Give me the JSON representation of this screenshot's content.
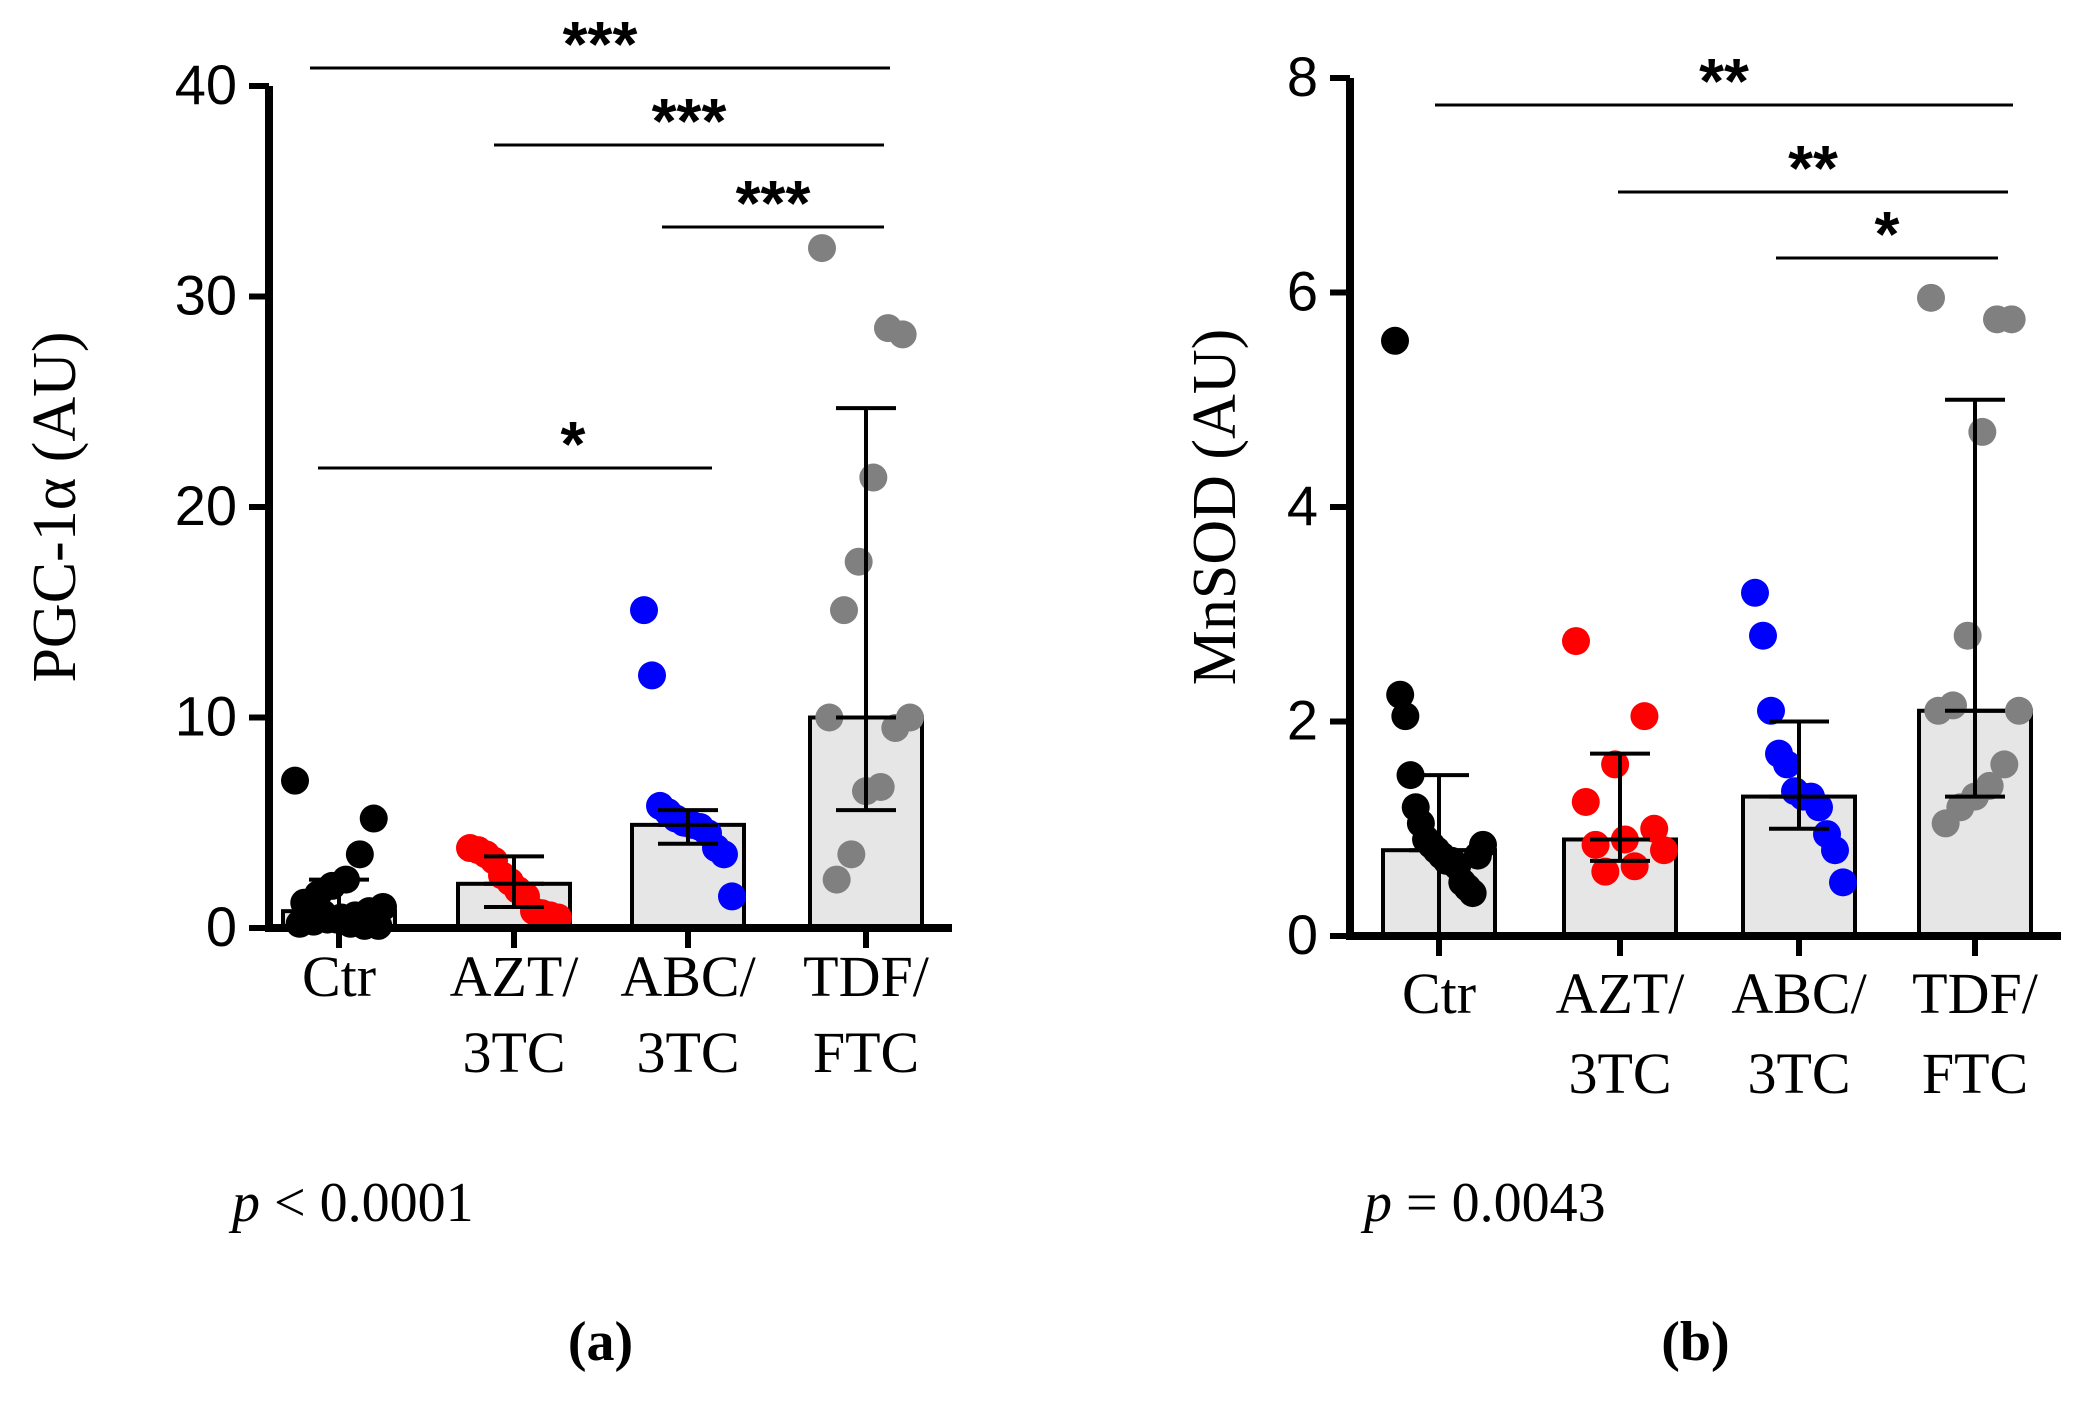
{
  "colors": {
    "ctr": "#000000",
    "azt": "#ff0000",
    "abc": "#0000ff",
    "tdf": "#808080",
    "bar_fill": "#e6e6e6",
    "axis": "#000000"
  },
  "chart_data": [
    {
      "panel": "(a)",
      "type": "bar",
      "ylabel": "PGC-1α (AU)",
      "ylim": [
        0,
        40
      ],
      "yticks": [
        "0",
        "10",
        "20",
        "30",
        "40"
      ],
      "categories": [
        {
          "line1": "Ctr",
          "line2": ""
        },
        {
          "line1": "AZT/",
          "line2": "3TC"
        },
        {
          "line1": "ABC/",
          "line2": "3TC"
        },
        {
          "line1": "TDF/",
          "line2": "FTC"
        }
      ],
      "means": [
        0.8,
        2.1,
        4.9,
        10.0
      ],
      "errors": [
        [
          0.0,
          2.3
        ],
        [
          1.0,
          3.4
        ],
        [
          4.0,
          5.6
        ],
        [
          5.6,
          24.7
        ]
      ],
      "points": [
        [
          7.0,
          5.2,
          3.5,
          2.3,
          2.0,
          1.6,
          1.2,
          1.0,
          0.8,
          0.6,
          0.5,
          0.4,
          0.3,
          0.2,
          0.1,
          0.1,
          0.2,
          0.4,
          0.7,
          0.9
        ],
        [
          3.8,
          3.7,
          3.5,
          3.2,
          2.5,
          2.2,
          1.8,
          1.5,
          0.8,
          0.7,
          0.6,
          0.5
        ],
        [
          15.1,
          12.0,
          5.8,
          5.5,
          5.2,
          5.0,
          4.9,
          4.8,
          4.5,
          3.8,
          3.5,
          1.5
        ],
        [
          32.3,
          28.2,
          28.5,
          21.4,
          17.4,
          15.1,
          10.0,
          10.0,
          9.5,
          6.7,
          6.5,
          3.5,
          2.3
        ]
      ],
      "significance": [
        {
          "from": 0,
          "to": 3,
          "label": "***"
        },
        {
          "from": 1,
          "to": 3,
          "label": "***"
        },
        {
          "from": 2,
          "to": 3,
          "label": "***"
        },
        {
          "from": 0,
          "to": 2,
          "label": "*"
        }
      ],
      "pvalue": {
        "p": "p",
        "rest": " < 0.0001"
      }
    },
    {
      "panel": "(b)",
      "type": "bar",
      "ylabel": "MnSOD (AU)",
      "ylim": [
        0,
        8
      ],
      "yticks": [
        "0",
        "2",
        "4",
        "6",
        "8"
      ],
      "categories": [
        {
          "line1": "Ctr",
          "line2": ""
        },
        {
          "line1": "AZT/",
          "line2": "3TC"
        },
        {
          "line1": "ABC/",
          "line2": "3TC"
        },
        {
          "line1": "TDF/",
          "line2": "FTC"
        }
      ],
      "means": [
        0.8,
        0.9,
        1.3,
        2.1
      ],
      "errors": [
        [
          0.0,
          1.5
        ],
        [
          0.7,
          1.7
        ],
        [
          1.0,
          2.0
        ],
        [
          1.3,
          5.0
        ]
      ],
      "points": [
        [
          5.55,
          2.25,
          2.05,
          1.5,
          1.2,
          1.05,
          0.9,
          0.85,
          0.8,
          0.75,
          0.7,
          0.7,
          0.65,
          0.5,
          0.45,
          0.4,
          0.75,
          0.85
        ],
        [
          2.75,
          2.05,
          1.6,
          1.25,
          1.0,
          0.9,
          0.85,
          0.8,
          0.65,
          0.6
        ],
        [
          3.2,
          2.8,
          2.1,
          1.7,
          1.6,
          1.35,
          1.3,
          1.3,
          1.2,
          0.95,
          0.8,
          0.5
        ],
        [
          5.95,
          5.75,
          5.75,
          4.7,
          2.8,
          2.15,
          2.1,
          2.1,
          1.6,
          1.4,
          1.3,
          1.2,
          1.05
        ]
      ],
      "significance": [
        {
          "from": 0,
          "to": 3,
          "label": "**"
        },
        {
          "from": 1,
          "to": 3,
          "label": "**"
        },
        {
          "from": 2,
          "to": 3,
          "label": "*"
        }
      ],
      "pvalue": {
        "p": "p",
        "rest": " = 0.0043"
      }
    }
  ]
}
